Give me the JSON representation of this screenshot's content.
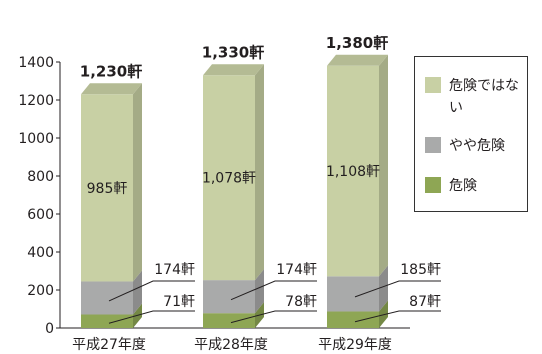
{
  "chart_data": {
    "type": "bar",
    "stacked": true,
    "style": "3d",
    "categories": [
      "平成27年度",
      "平成28年度",
      "平成29年度"
    ],
    "series": [
      {
        "name": "危険",
        "values": [
          71,
          78,
          87
        ],
        "labels": [
          "71軒",
          "78軒",
          "87軒"
        ],
        "color": "#8ea654"
      },
      {
        "name": "やや危険",
        "values": [
          174,
          174,
          185
        ],
        "labels": [
          "174軒",
          "174軒",
          "185軒"
        ],
        "color": "#a9aaaa"
      },
      {
        "name": "危険ではない",
        "values": [
          985,
          1078,
          1108
        ],
        "labels": [
          "985軒",
          "1,078軒",
          "1,108軒"
        ],
        "color": "#c8d0a4"
      }
    ],
    "totals": {
      "values": [
        1230,
        1330,
        1380
      ],
      "labels": [
        "1,230軒",
        "1,330軒",
        "1,380軒"
      ]
    },
    "ylim": [
      0,
      1400
    ],
    "yticks": [
      0,
      200,
      400,
      600,
      800,
      1000,
      1200,
      1400
    ],
    "grid": false,
    "legend_position": "right",
    "legend": [
      {
        "label": "危険ではない",
        "color": "#c8d0a4"
      },
      {
        "label": "やや危険",
        "color": "#a9aaaa"
      },
      {
        "label": "危険",
        "color": "#8ea654"
      }
    ],
    "title": "",
    "xlabel": "",
    "ylabel": ""
  }
}
